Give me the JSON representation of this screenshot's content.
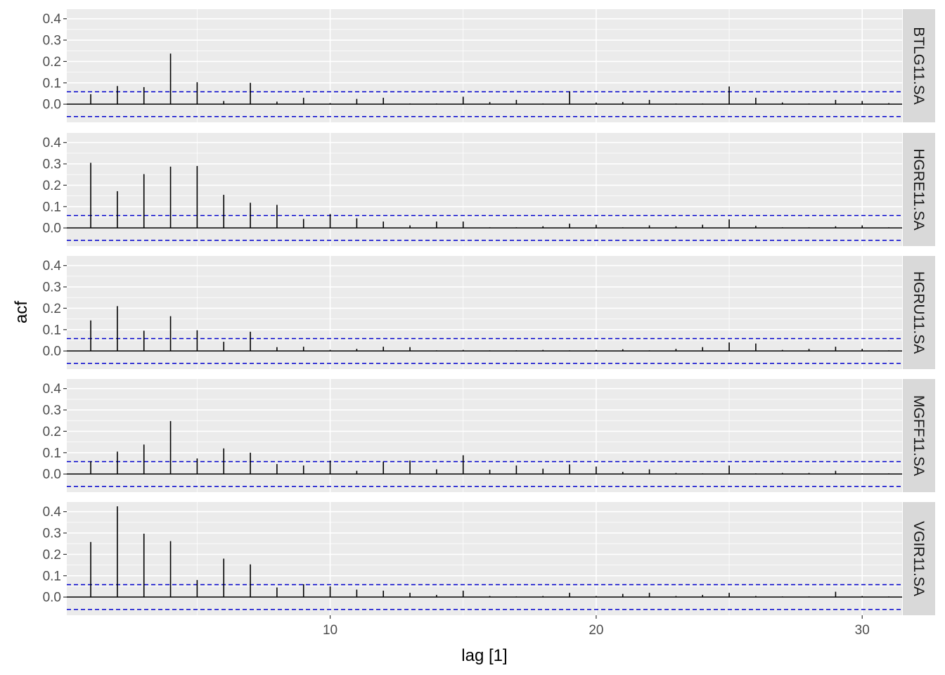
{
  "chart_data": {
    "type": "bar",
    "xlabel": "lag [1]",
    "ylabel": "acf",
    "x_ticks": [
      10,
      20,
      30
    ],
    "y_ticks": [
      0.0,
      0.1,
      0.2,
      0.3,
      0.4
    ],
    "y_tick_labels": [
      "0.0",
      "0.1",
      "0.2",
      "0.3",
      "0.4"
    ],
    "xlim": [
      0.1,
      31.5
    ],
    "ylim": [
      -0.085,
      0.445
    ],
    "lags": [
      1,
      2,
      3,
      4,
      5,
      6,
      7,
      8,
      9,
      10,
      11,
      12,
      13,
      14,
      15,
      16,
      17,
      18,
      19,
      20,
      21,
      22,
      23,
      24,
      25,
      26,
      27,
      28,
      29,
      30,
      31
    ],
    "confidence_bound": 0.058,
    "colors": {
      "bar": "#000000",
      "confidence": "#0000cc",
      "panel": "#ebebeb",
      "grid": "#ffffff",
      "strip": "#d9d9d9"
    },
    "panels": [
      {
        "name": "BTLG11.SA",
        "values": [
          0.047,
          0.085,
          0.08,
          0.237,
          0.103,
          0.015,
          0.1,
          0.012,
          0.03,
          0.005,
          0.025,
          0.03,
          0.003,
          0.003,
          0.035,
          0.01,
          0.02,
          0.003,
          0.06,
          0.008,
          0.01,
          0.02,
          0.003,
          0.003,
          0.083,
          0.03,
          0.008,
          0.003,
          0.02,
          0.015,
          0.005
        ]
      },
      {
        "name": "HGRE11.SA",
        "values": [
          0.305,
          0.172,
          0.252,
          0.287,
          0.29,
          0.155,
          0.118,
          0.108,
          0.042,
          0.065,
          0.045,
          0.03,
          0.012,
          0.03,
          0.03,
          0.003,
          0.003,
          0.008,
          0.02,
          0.015,
          0.003,
          0.012,
          0.008,
          0.015,
          0.04,
          0.01,
          0.003,
          0.003,
          0.008,
          0.012,
          0.003
        ]
      },
      {
        "name": "HGRU11.SA",
        "values": [
          0.143,
          0.21,
          0.095,
          0.163,
          0.097,
          0.043,
          0.09,
          0.018,
          0.02,
          0.005,
          0.01,
          0.02,
          0.018,
          0.003,
          0.005,
          0.003,
          0.003,
          0.005,
          0.003,
          0.005,
          0.008,
          0.003,
          0.01,
          0.018,
          0.04,
          0.035,
          0.005,
          0.01,
          0.02,
          0.01,
          0.003
        ]
      },
      {
        "name": "MGFF11.SA",
        "values": [
          0.06,
          0.105,
          0.138,
          0.248,
          0.073,
          0.12,
          0.1,
          0.047,
          0.04,
          0.063,
          0.015,
          0.058,
          0.063,
          0.022,
          0.088,
          0.02,
          0.04,
          0.025,
          0.045,
          0.035,
          0.01,
          0.022,
          0.005,
          0.003,
          0.04,
          0.003,
          0.005,
          0.005,
          0.015,
          0.003,
          0.003
        ]
      },
      {
        "name": "VGIR11.SA",
        "values": [
          0.258,
          0.425,
          0.297,
          0.262,
          0.08,
          0.18,
          0.153,
          0.045,
          0.06,
          0.05,
          0.035,
          0.03,
          0.02,
          0.01,
          0.03,
          0.005,
          0.003,
          0.005,
          0.02,
          0.005,
          0.015,
          0.02,
          0.005,
          0.01,
          0.02,
          0.005,
          0.003,
          0.003,
          0.025,
          0.005,
          0.003
        ]
      }
    ]
  }
}
